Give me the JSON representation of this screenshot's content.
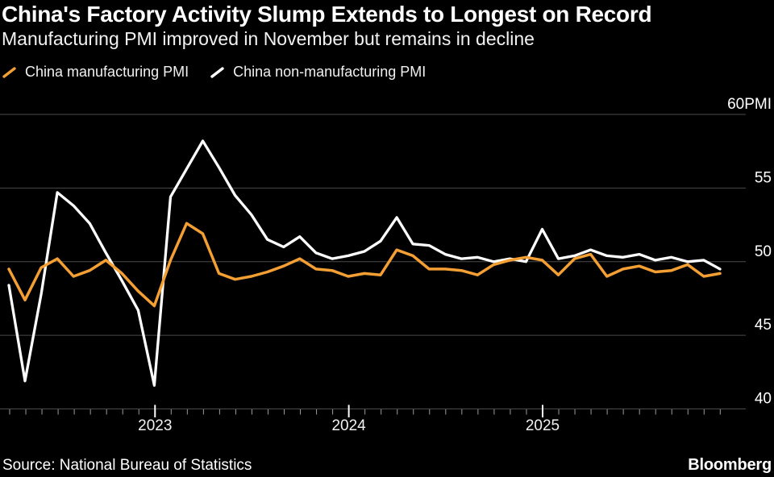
{
  "header": {
    "title": "China's Factory Activity Slump Extends to Longest on Record",
    "subtitle": "Manufacturing PMI improved in November but remains in decline"
  },
  "legend": {
    "items": [
      {
        "label": "China manufacturing PMI",
        "color": "#F39F33"
      },
      {
        "label": "China non-manufacturing PMI",
        "color": "#FFFFFF"
      }
    ]
  },
  "chart_data": {
    "type": "line",
    "title": "China's Factory Activity Slump Extends to Longest on Record",
    "x_start": "Mar 2022",
    "x_end": "Nov 2025",
    "x_frequency": "monthly",
    "ylim": [
      40,
      60
    ],
    "ylabel_unit": "PMI",
    "grid": "horizontal",
    "grid_color": "#4a4a4a",
    "minor_tick_color": "#9c9c9c",
    "major_tick_color": "#ffffff",
    "axis_text_color": "#f2f2f2",
    "legend_position": "top",
    "yticks": [
      {
        "value": 40,
        "label": "40"
      },
      {
        "value": 45,
        "label": "45"
      },
      {
        "value": 50,
        "label": "50"
      },
      {
        "value": 55,
        "label": "55"
      },
      {
        "value": 60,
        "label": "60PMI"
      }
    ],
    "xticks": [
      {
        "label": "2023",
        "tick_index": 9
      },
      {
        "label": "2024",
        "tick_index": 21
      },
      {
        "label": "2025",
        "tick_index": 33
      }
    ],
    "series": [
      {
        "name": "China manufacturing PMI",
        "color": "#F39F33",
        "values": [
          49.5,
          47.4,
          49.6,
          50.2,
          49.0,
          49.4,
          50.1,
          49.2,
          48.0,
          47.0,
          50.1,
          52.6,
          51.9,
          49.2,
          48.8,
          49.0,
          49.3,
          49.7,
          50.2,
          49.5,
          49.4,
          49.0,
          49.2,
          49.1,
          50.8,
          50.4,
          49.5,
          49.5,
          49.4,
          49.1,
          49.8,
          50.1,
          50.3,
          50.1,
          49.1,
          50.2,
          50.5,
          49.0,
          49.5,
          49.7,
          49.3,
          49.4,
          49.8,
          49.0,
          49.2
        ]
      },
      {
        "name": "China non-manufacturing PMI",
        "color": "#FFFFFF",
        "values": [
          48.4,
          41.9,
          47.8,
          54.7,
          53.8,
          52.6,
          50.6,
          48.7,
          46.7,
          41.6,
          54.4,
          56.3,
          58.2,
          56.4,
          54.5,
          53.2,
          51.5,
          51.0,
          51.7,
          50.6,
          50.2,
          50.4,
          50.7,
          51.4,
          53.0,
          51.2,
          51.1,
          50.5,
          50.2,
          50.3,
          50.0,
          50.2,
          50.0,
          52.2,
          50.2,
          50.4,
          50.8,
          50.4,
          50.3,
          50.5,
          50.1,
          50.3,
          50.0,
          50.1,
          49.5
        ]
      }
    ]
  },
  "footer": {
    "source": "Source: National Bureau of Statistics",
    "brand": "Bloomberg"
  }
}
